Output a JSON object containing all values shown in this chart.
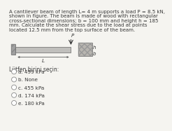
{
  "title_text": "A cantilever beam of length L= 4 m supports a load P = 8.5 kN,\nshown in figure. The beam is made of wood with rectangular\ncross-sectional dimensions; b = 100 mm and height h = 185\nmm. Calculate the shear stress due to the load at points\nlocated 12.5 mm from the top surface of the beam.",
  "question_label": "Lütfen birini seçin:",
  "options": [
    "a. 499 kPa",
    "b. None",
    "c. 455 kPa",
    "d. 174 kPa",
    "e. 180 kPa"
  ],
  "bg_color": "#f5f4f0",
  "text_color": "#3a3a3a",
  "title_fontsize": 5.0,
  "option_fontsize": 5.2,
  "question_fontsize": 5.5,
  "beam_color": "#c0bfbc",
  "wall_color": "#a0a0a0",
  "cs_color": "#b8b5b0"
}
